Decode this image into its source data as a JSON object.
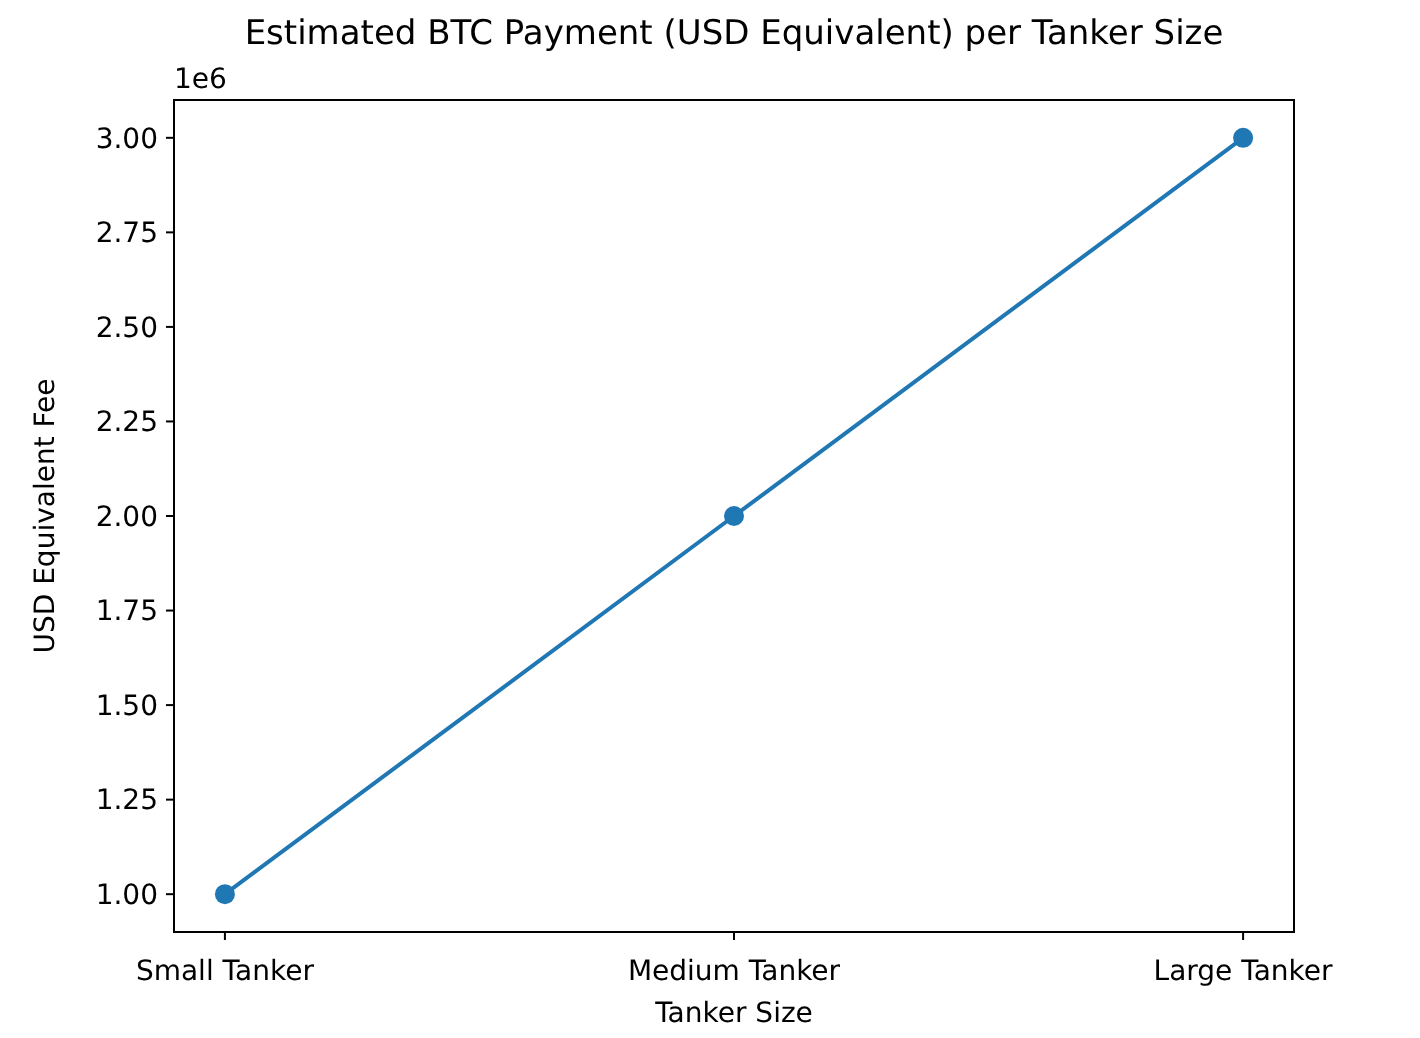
{
  "chart_data": {
    "type": "line",
    "title": "Estimated BTC Payment (USD Equivalent) per Tanker Size",
    "xlabel": "Tanker Size",
    "ylabel": "USD Equivalent Fee",
    "categories": [
      "Small Tanker",
      "Medium Tanker",
      "Large Tanker"
    ],
    "series": [
      {
        "color": "#1f77b4",
        "values": [
          1,
          2,
          3
        ]
      }
    ],
    "ylim": [
      0.9,
      3.1
    ],
    "yticks": [
      {
        "value": 1,
        "label": "1.00"
      },
      {
        "value": 1.25,
        "label": "1.25"
      },
      {
        "value": 1.5,
        "label": "1.50"
      },
      {
        "value": 1.75,
        "label": "1.75"
      },
      {
        "value": 2,
        "label": "2.00"
      },
      {
        "value": 2.25,
        "label": "2.25"
      },
      {
        "value": 2.5,
        "label": "2.50"
      },
      {
        "value": 2.75,
        "label": "2.75"
      },
      {
        "value": 3,
        "label": "3.00"
      }
    ],
    "annotations": [
      "1e6"
    ],
    "marker": "circle",
    "line_style": "solid"
  }
}
